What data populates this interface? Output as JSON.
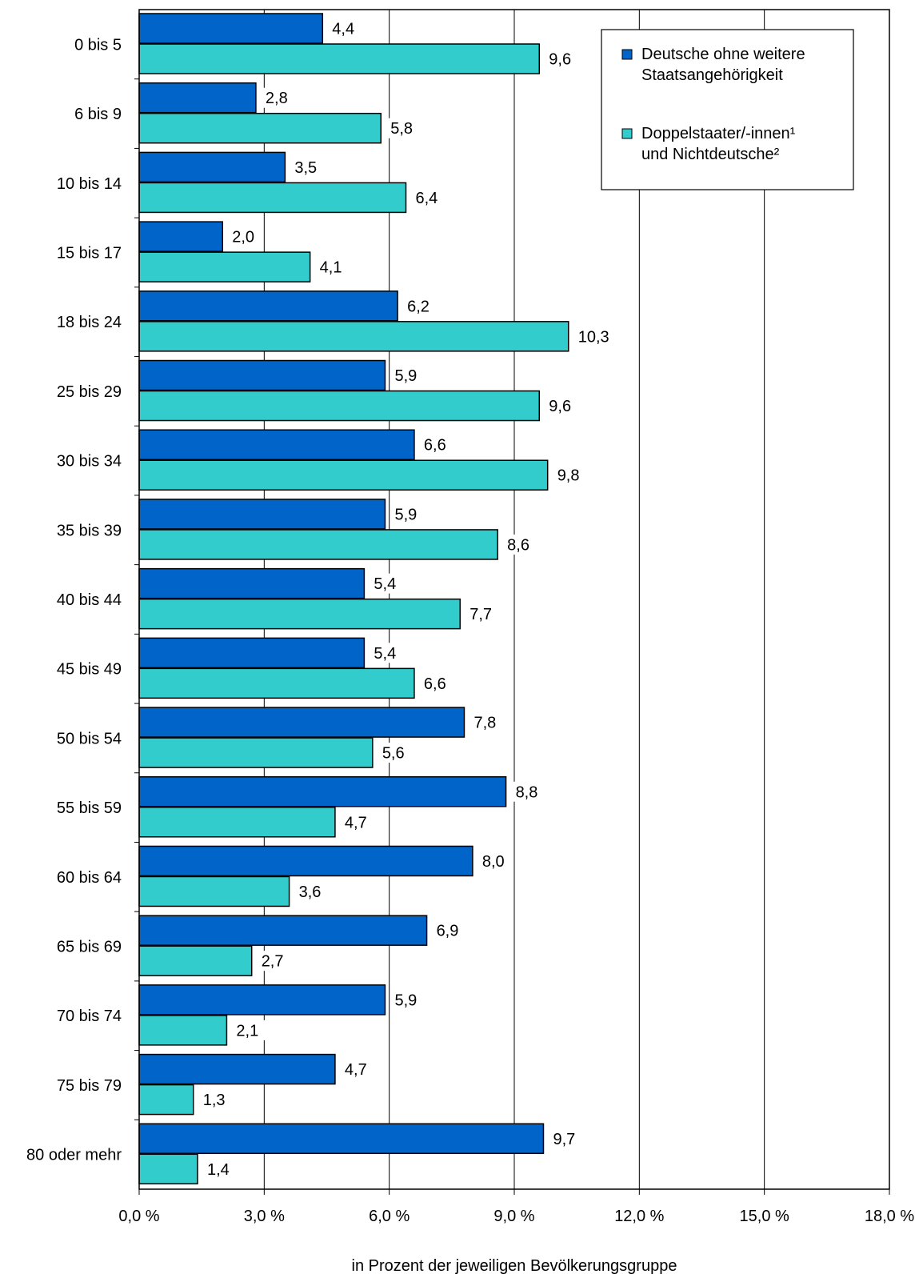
{
  "chart_data": {
    "type": "bar",
    "orientation": "horizontal",
    "categories": [
      "0 bis 5",
      "6 bis 9",
      "10 bis 14",
      "15 bis 17",
      "18 bis 24",
      "25 bis 29",
      "30 bis 34",
      "35 bis 39",
      "40 bis 44",
      "45 bis 49",
      "50 bis 54",
      "55 bis 59",
      "60 bis 64",
      "65 bis 69",
      "70 bis 74",
      "75 bis 79",
      "80 oder mehr"
    ],
    "series": [
      {
        "name_lines": [
          "Deutsche ohne weitere",
          "Staatsangehörigkeit"
        ],
        "color": "#0064c8",
        "values": [
          4.4,
          2.8,
          3.5,
          2.0,
          6.2,
          5.9,
          6.6,
          5.9,
          5.4,
          5.4,
          7.8,
          8.8,
          8.0,
          6.9,
          5.9,
          4.7,
          9.7
        ],
        "labels": [
          "4,4",
          "2,8",
          "3,5",
          "2,0",
          "6,2",
          "5,9",
          "6,6",
          "5,9",
          "5,4",
          "5,4",
          "7,8",
          "8,8",
          "8,0",
          "6,9",
          "5,9",
          "4,7",
          "9,7"
        ]
      },
      {
        "name_lines": [
          "Doppelstaater/-innen¹",
          "und Nichtdeutsche²"
        ],
        "color": "#33cccc",
        "values": [
          9.6,
          5.8,
          6.4,
          4.1,
          10.3,
          9.6,
          9.8,
          8.6,
          7.7,
          6.6,
          5.6,
          4.7,
          3.6,
          2.7,
          2.1,
          1.3,
          1.4
        ],
        "labels": [
          "9,6",
          "5,8",
          "6,4",
          "4,1",
          "10,3",
          "9,6",
          "9,8",
          "8,6",
          "7,7",
          "6,6",
          "5,6",
          "4,7",
          "3,6",
          "2,7",
          "2,1",
          "1,3",
          "1,4"
        ]
      }
    ],
    "xlim": [
      0,
      18
    ],
    "xticks": [
      0,
      3,
      6,
      9,
      12,
      15,
      18
    ],
    "xtick_labels": [
      "0,0 %",
      "3,0 %",
      "6,0 %",
      "9,0 %",
      "12,0 %",
      "15,0 %",
      "18,0 %"
    ],
    "xlabel": "in Prozent der jeweiligen Bevölkerungsgruppe",
    "grid": "vertical",
    "legend_position": "top-right"
  }
}
